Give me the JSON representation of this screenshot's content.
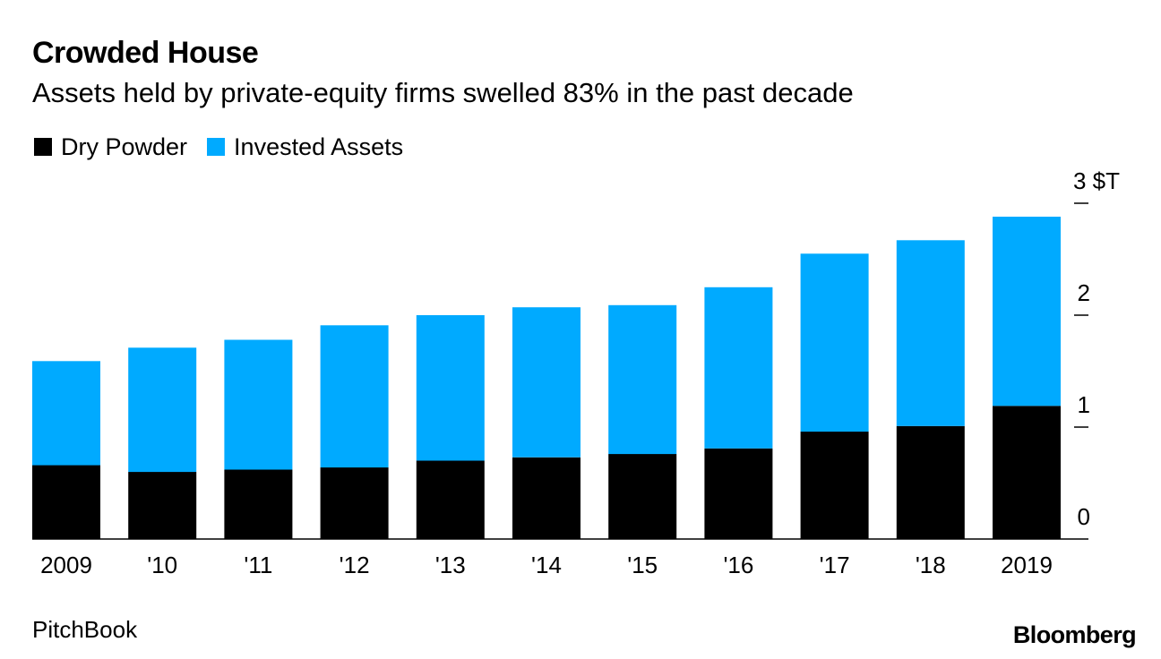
{
  "header": {
    "title": "Crowded House",
    "subtitle": "Assets held by private-equity firms swelled 83% in the past decade"
  },
  "legend": {
    "items": [
      {
        "label": "Dry Powder",
        "color": "#000000"
      },
      {
        "label": "Invested Assets",
        "color": "#00AAFF"
      }
    ]
  },
  "chart_data": {
    "type": "bar",
    "stacked": true,
    "categories": [
      "2009",
      "'10",
      "'11",
      "'12",
      "'13",
      "'14",
      "'15",
      "'16",
      "'17",
      "'18",
      "2019"
    ],
    "series": [
      {
        "name": "Dry Powder",
        "color": "#000000",
        "values": [
          0.66,
          0.6,
          0.62,
          0.64,
          0.7,
          0.73,
          0.76,
          0.81,
          0.96,
          1.01,
          1.19
        ]
      },
      {
        "name": "Invested Assets",
        "color": "#00AAFF",
        "values": [
          0.93,
          1.11,
          1.16,
          1.27,
          1.3,
          1.34,
          1.33,
          1.44,
          1.59,
          1.66,
          1.69
        ]
      }
    ],
    "title": "Crowded House",
    "subtitle": "Assets held by private-equity firms swelled 83% in the past decade",
    "xlabel": "",
    "ylabel": "",
    "ylim": [
      0,
      3
    ],
    "yticks": [
      0,
      1,
      2,
      3
    ],
    "ytick_labels": [
      "0",
      "1",
      "2",
      "3 $T"
    ],
    "y_axis_side": "right",
    "grid": false,
    "legend_position": "top-left"
  },
  "footer": {
    "source": "PitchBook",
    "brand": "Bloomberg"
  }
}
